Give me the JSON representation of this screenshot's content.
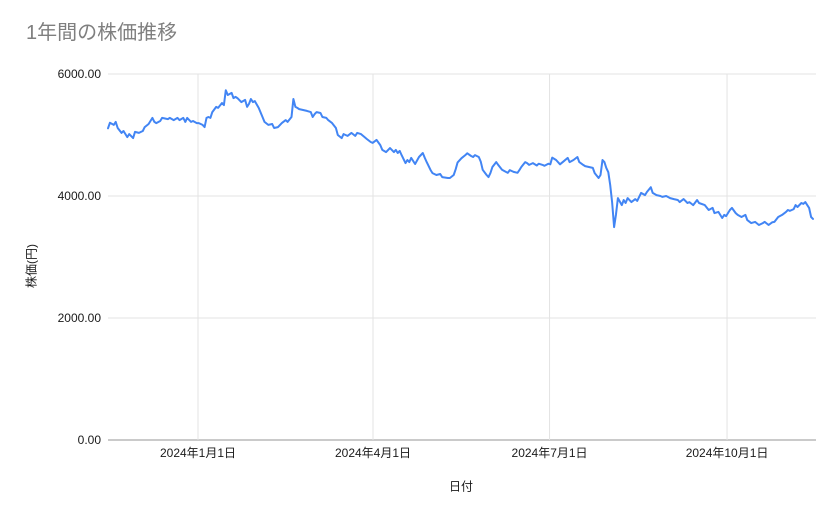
{
  "page": {
    "background": "#ffffff"
  },
  "chart_data": {
    "type": "line",
    "title": "1年間の株価推移",
    "xlabel": "日付",
    "ylabel": "株価(円)",
    "ylim": [
      0,
      6000
    ],
    "x_domain_days": [
      0,
      365
    ],
    "grid": true,
    "legend_position": "none",
    "title_color": "#7f7f7f",
    "line_color": "#4285f4",
    "grid_color": "#e3e3e3",
    "axis_color": "#949494",
    "tick_label_color": "#1a1a1a",
    "y_ticks": [
      {
        "value": 0,
        "label": "0.00"
      },
      {
        "value": 2000,
        "label": "2000.00"
      },
      {
        "value": 4000,
        "label": "4000.00"
      },
      {
        "value": 6000,
        "label": "6000.00"
      }
    ],
    "x_ticks": [
      {
        "day": 46.6,
        "label": "2024年1月1日"
      },
      {
        "day": 137.2,
        "label": "2024年4月1日"
      },
      {
        "day": 228.6,
        "label": "2024年7月1日"
      },
      {
        "day": 320.5,
        "label": "2024年10月1日"
      }
    ],
    "series": [
      {
        "points": [
          [
            0,
            5110
          ],
          [
            1,
            5200
          ],
          [
            3,
            5165
          ],
          [
            4,
            5215
          ],
          [
            5,
            5115
          ],
          [
            7,
            5035
          ],
          [
            8,
            5065
          ],
          [
            10,
            4965
          ],
          [
            11,
            5015
          ],
          [
            13,
            4950
          ],
          [
            14,
            5050
          ],
          [
            16,
            5035
          ],
          [
            18,
            5065
          ],
          [
            19,
            5130
          ],
          [
            21,
            5180
          ],
          [
            23,
            5280
          ],
          [
            24,
            5215
          ],
          [
            25,
            5195
          ],
          [
            27,
            5230
          ],
          [
            28,
            5280
          ],
          [
            31,
            5260
          ],
          [
            32,
            5280
          ],
          [
            34,
            5245
          ],
          [
            36,
            5280
          ],
          [
            37,
            5245
          ],
          [
            39,
            5280
          ],
          [
            40,
            5215
          ],
          [
            41,
            5280
          ],
          [
            43,
            5215
          ],
          [
            44,
            5230
          ],
          [
            46,
            5195
          ],
          [
            47,
            5195
          ],
          [
            49,
            5165
          ],
          [
            50,
            5130
          ],
          [
            51,
            5280
          ],
          [
            52,
            5295
          ],
          [
            53,
            5280
          ],
          [
            54,
            5375
          ],
          [
            56,
            5460
          ],
          [
            57,
            5445
          ],
          [
            59,
            5525
          ],
          [
            60,
            5490
          ],
          [
            61,
            5735
          ],
          [
            62,
            5655
          ],
          [
            64,
            5690
          ],
          [
            65,
            5605
          ],
          [
            66,
            5625
          ],
          [
            67,
            5605
          ],
          [
            69,
            5540
          ],
          [
            71,
            5575
          ],
          [
            72,
            5460
          ],
          [
            73,
            5510
          ],
          [
            74,
            5590
          ],
          [
            75,
            5540
          ],
          [
            76,
            5555
          ],
          [
            78,
            5445
          ],
          [
            80,
            5295
          ],
          [
            81,
            5215
          ],
          [
            83,
            5165
          ],
          [
            85,
            5180
          ],
          [
            86,
            5115
          ],
          [
            88,
            5130
          ],
          [
            90,
            5195
          ],
          [
            92,
            5245
          ],
          [
            93,
            5215
          ],
          [
            95,
            5295
          ],
          [
            96,
            5590
          ],
          [
            97,
            5460
          ],
          [
            98,
            5445
          ],
          [
            99,
            5425
          ],
          [
            101,
            5410
          ],
          [
            103,
            5395
          ],
          [
            105,
            5375
          ],
          [
            106,
            5295
          ],
          [
            107,
            5345
          ],
          [
            108,
            5375
          ],
          [
            110,
            5360
          ],
          [
            111,
            5295
          ],
          [
            113,
            5280
          ],
          [
            114,
            5245
          ],
          [
            116,
            5195
          ],
          [
            118,
            5115
          ],
          [
            119,
            5000
          ],
          [
            121,
            4950
          ],
          [
            122,
            5015
          ],
          [
            124,
            4985
          ],
          [
            126,
            5035
          ],
          [
            128,
            4985
          ],
          [
            129,
            5035
          ],
          [
            131,
            5015
          ],
          [
            133,
            4960
          ],
          [
            134,
            4935
          ],
          [
            136,
            4885
          ],
          [
            137,
            4870
          ],
          [
            139,
            4920
          ],
          [
            141,
            4835
          ],
          [
            142,
            4755
          ],
          [
            144,
            4720
          ],
          [
            146,
            4785
          ],
          [
            148,
            4720
          ],
          [
            149,
            4755
          ],
          [
            150,
            4705
          ],
          [
            151,
            4740
          ],
          [
            152,
            4670
          ],
          [
            154,
            4540
          ],
          [
            155,
            4590
          ],
          [
            156,
            4555
          ],
          [
            157,
            4625
          ],
          [
            159,
            4525
          ],
          [
            161,
            4640
          ],
          [
            163,
            4705
          ],
          [
            164,
            4625
          ],
          [
            165,
            4555
          ],
          [
            167,
            4425
          ],
          [
            168,
            4375
          ],
          [
            170,
            4345
          ],
          [
            172,
            4360
          ],
          [
            173,
            4310
          ],
          [
            176,
            4295
          ],
          [
            177,
            4295
          ],
          [
            179,
            4345
          ],
          [
            180,
            4440
          ],
          [
            181,
            4550
          ],
          [
            183,
            4620
          ],
          [
            185,
            4670
          ],
          [
            186,
            4700
          ],
          [
            188,
            4655
          ],
          [
            189,
            4640
          ],
          [
            190,
            4670
          ],
          [
            192,
            4640
          ],
          [
            193,
            4560
          ],
          [
            194,
            4430
          ],
          [
            196,
            4345
          ],
          [
            197,
            4310
          ],
          [
            198,
            4375
          ],
          [
            199,
            4475
          ],
          [
            201,
            4555
          ],
          [
            202,
            4510
          ],
          [
            204,
            4430
          ],
          [
            206,
            4395
          ],
          [
            207,
            4380
          ],
          [
            208,
            4425
          ],
          [
            210,
            4395
          ],
          [
            212,
            4380
          ],
          [
            213,
            4425
          ],
          [
            214,
            4475
          ],
          [
            216,
            4555
          ],
          [
            217,
            4540
          ],
          [
            218,
            4510
          ],
          [
            220,
            4540
          ],
          [
            222,
            4500
          ],
          [
            223,
            4530
          ],
          [
            225,
            4510
          ],
          [
            226,
            4495
          ],
          [
            228,
            4530
          ],
          [
            229,
            4520
          ],
          [
            230,
            4630
          ],
          [
            232,
            4590
          ],
          [
            234,
            4520
          ],
          [
            236,
            4570
          ],
          [
            238,
            4625
          ],
          [
            239,
            4555
          ],
          [
            241,
            4590
          ],
          [
            243,
            4640
          ],
          [
            244,
            4555
          ],
          [
            246,
            4510
          ],
          [
            247,
            4490
          ],
          [
            249,
            4475
          ],
          [
            251,
            4460
          ],
          [
            252,
            4375
          ],
          [
            254,
            4295
          ],
          [
            255,
            4345
          ],
          [
            256,
            4590
          ],
          [
            257,
            4555
          ],
          [
            258,
            4460
          ],
          [
            259,
            4390
          ],
          [
            260,
            4180
          ],
          [
            261,
            3900
          ],
          [
            262,
            3490
          ],
          [
            263,
            3700
          ],
          [
            264,
            3965
          ],
          [
            266,
            3850
          ],
          [
            267,
            3935
          ],
          [
            268,
            3885
          ],
          [
            269,
            3965
          ],
          [
            271,
            3900
          ],
          [
            273,
            3950
          ],
          [
            274,
            3920
          ],
          [
            276,
            4050
          ],
          [
            278,
            4015
          ],
          [
            279,
            4065
          ],
          [
            281,
            4145
          ],
          [
            282,
            4050
          ],
          [
            284,
            4015
          ],
          [
            286,
            4000
          ],
          [
            287,
            3985
          ],
          [
            289,
            4000
          ],
          [
            291,
            3965
          ],
          [
            293,
            3950
          ],
          [
            295,
            3935
          ],
          [
            296,
            3900
          ],
          [
            298,
            3950
          ],
          [
            300,
            3885
          ],
          [
            301,
            3900
          ],
          [
            303,
            3850
          ],
          [
            305,
            3935
          ],
          [
            306,
            3885
          ],
          [
            309,
            3850
          ],
          [
            311,
            3770
          ],
          [
            313,
            3805
          ],
          [
            314,
            3720
          ],
          [
            316,
            3740
          ],
          [
            318,
            3640
          ],
          [
            319,
            3690
          ],
          [
            320,
            3670
          ],
          [
            322,
            3770
          ],
          [
            323,
            3805
          ],
          [
            325,
            3720
          ],
          [
            326,
            3690
          ],
          [
            328,
            3655
          ],
          [
            330,
            3690
          ],
          [
            331,
            3605
          ],
          [
            333,
            3555
          ],
          [
            335,
            3575
          ],
          [
            337,
            3525
          ],
          [
            339,
            3555
          ],
          [
            340,
            3575
          ],
          [
            342,
            3525
          ],
          [
            344,
            3570
          ],
          [
            345,
            3575
          ],
          [
            347,
            3655
          ],
          [
            349,
            3690
          ],
          [
            351,
            3740
          ],
          [
            352,
            3770
          ],
          [
            353,
            3755
          ],
          [
            355,
            3785
          ],
          [
            356,
            3850
          ],
          [
            357,
            3820
          ],
          [
            359,
            3885
          ],
          [
            360,
            3870
          ],
          [
            361,
            3900
          ],
          [
            363,
            3805
          ],
          [
            364,
            3655
          ],
          [
            365,
            3625
          ]
        ]
      }
    ]
  }
}
